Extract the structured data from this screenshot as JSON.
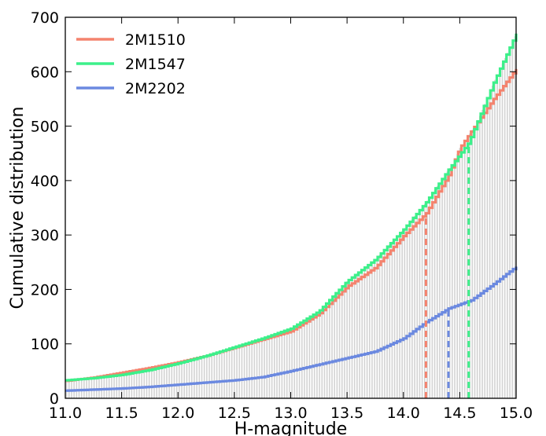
{
  "chart_data": {
    "type": "line",
    "xlabel": "H-magnitude",
    "ylabel": "Cumulative distribution",
    "xlim": [
      11.0,
      15.0
    ],
    "ylim": [
      0,
      700
    ],
    "x_ticks": [
      "11.0",
      "11.5",
      "12.0",
      "12.5",
      "13.0",
      "13.5",
      "14.0",
      "14.5",
      "15.0"
    ],
    "y_ticks": [
      "0",
      "100",
      "200",
      "300",
      "400",
      "500",
      "600",
      "700"
    ],
    "grid": false,
    "legend_position": "top-left",
    "background_histogram_color": "#d3d3d3",
    "series": [
      {
        "name": "2M1510",
        "color": "#f4836e",
        "x": [
          11.0,
          11.25,
          11.5,
          11.75,
          12.0,
          12.25,
          12.5,
          12.75,
          13.0,
          13.25,
          13.5,
          13.75,
          14.0,
          14.2,
          14.4,
          14.5,
          14.7,
          14.8,
          15.0
        ],
        "y": [
          32,
          38,
          47,
          56,
          66,
          78,
          93,
          108,
          123,
          155,
          205,
          240,
          298,
          340,
          410,
          460,
          520,
          550,
          605
        ],
        "marker_x": 14.2,
        "marker_y": 340
      },
      {
        "name": "2M1547",
        "color": "#3cf08a",
        "x": [
          11.0,
          11.25,
          11.5,
          11.75,
          12.0,
          12.25,
          12.5,
          12.75,
          13.0,
          13.25,
          13.5,
          13.75,
          14.0,
          14.2,
          14.4,
          14.58,
          14.7,
          14.8,
          15.0
        ],
        "y": [
          33,
          37,
          43,
          52,
          64,
          78,
          94,
          110,
          128,
          160,
          215,
          255,
          310,
          360,
          420,
          470,
          530,
          580,
          670
        ],
        "marker_x": 14.58,
        "marker_y": 470
      },
      {
        "name": "2M2202",
        "color": "#6b89e0",
        "x": [
          11.0,
          11.25,
          11.5,
          11.75,
          12.0,
          12.25,
          12.5,
          12.75,
          13.0,
          13.25,
          13.5,
          13.75,
          14.0,
          14.2,
          14.4,
          14.6,
          14.8,
          15.0
        ],
        "y": [
          14,
          16,
          18,
          21,
          25,
          29,
          33,
          39,
          50,
          62,
          74,
          86,
          110,
          140,
          165,
          180,
          210,
          242
        ],
        "marker_x": 14.4,
        "marker_y": 165
      }
    ]
  }
}
